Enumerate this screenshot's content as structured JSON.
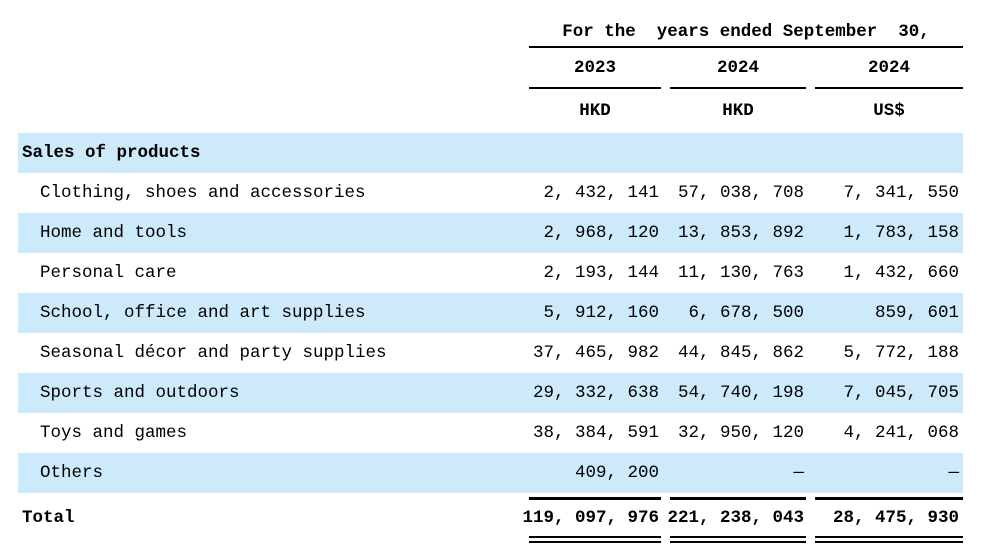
{
  "document": {
    "header": {
      "period_title": "For the  years ended September  30,",
      "columns": [
        {
          "year": "2023",
          "currency": "HKD"
        },
        {
          "year": "2024",
          "currency": "HKD"
        },
        {
          "year": "2024",
          "currency": "US$"
        }
      ]
    },
    "section": {
      "label": "Sales of products"
    },
    "rows": [
      {
        "label": "Clothing, shoes and accessories",
        "values": [
          "2, 432, 141",
          "57, 038, 708",
          "7, 341, 550"
        ]
      },
      {
        "label": "Home and tools",
        "values": [
          "2, 968, 120",
          "13, 853, 892",
          "1, 783, 158"
        ]
      },
      {
        "label": "Personal care",
        "values": [
          "2, 193, 144",
          "11, 130, 763",
          "1, 432, 660"
        ]
      },
      {
        "label": "School, office and art supplies",
        "values": [
          "5, 912, 160",
          "6, 678, 500",
          "859, 601"
        ]
      },
      {
        "label": "Seasonal décor and party supplies",
        "values": [
          "37, 465, 982",
          "44, 845, 862",
          "5, 772, 188"
        ]
      },
      {
        "label": "Sports and outdoors",
        "values": [
          "29, 332, 638",
          "54, 740, 198",
          "7, 045, 705"
        ]
      },
      {
        "label": "Toys and games",
        "values": [
          "38, 384, 591",
          "32, 950, 120",
          "4, 241, 068"
        ]
      },
      {
        "label": "Others",
        "values": [
          "409, 200",
          "—",
          "—"
        ]
      }
    ],
    "total": {
      "label": "Total",
      "values": [
        "119, 097, 976",
        "221, 238, 043",
        "28, 475, 930"
      ]
    },
    "colors": {
      "row_highlight": "#cdeafb",
      "rule": "#000000",
      "text": "#000000"
    }
  }
}
